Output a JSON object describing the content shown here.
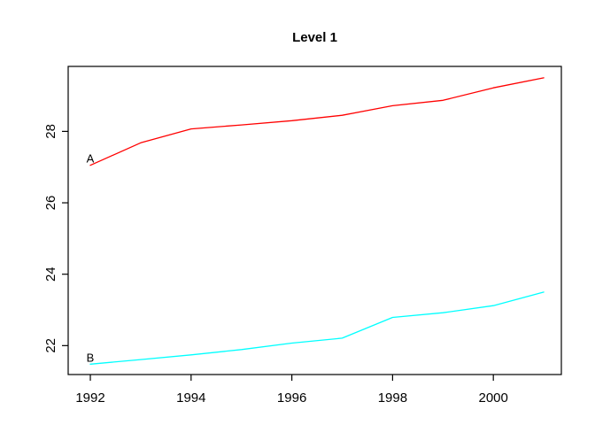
{
  "window": {
    "background_color": "#ffffff"
  },
  "chart_data": {
    "type": "line",
    "title": "Level 1",
    "xlabel": "",
    "ylabel": "",
    "x": [
      1992,
      1993,
      1994,
      1995,
      1996,
      1997,
      1998,
      1999,
      2000,
      2001
    ],
    "series": [
      {
        "name": "A",
        "point_label": "A",
        "color": "#ff0000",
        "values": [
          27.05,
          27.68,
          28.07,
          28.18,
          28.3,
          28.45,
          28.72,
          28.87,
          29.22,
          29.5
        ]
      },
      {
        "name": "B",
        "point_label": "B",
        "color": "#00ffff",
        "values": [
          21.48,
          21.61,
          21.74,
          21.89,
          22.07,
          22.21,
          22.79,
          22.92,
          23.12,
          23.5
        ]
      }
    ],
    "x_ticks": [
      1992,
      1994,
      1996,
      1998,
      2000
    ],
    "y_ticks": [
      22,
      24,
      26,
      28
    ],
    "xlim": [
      1991.56,
      2001.35
    ],
    "ylim": [
      21.19,
      29.82
    ],
    "grid": false,
    "legend_position": "point-labels-at-first-point",
    "axis_color": "#000000",
    "text_color": "#000000",
    "plot_background": "#ffffff"
  }
}
